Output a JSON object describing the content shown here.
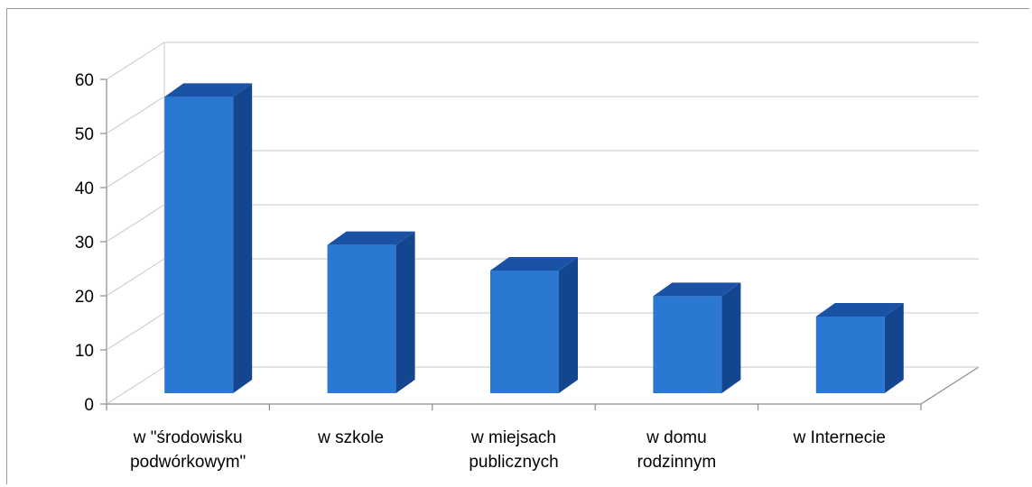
{
  "chart_data": {
    "type": "bar",
    "subtype": "3d-column",
    "categories": [
      [
        "w \"środowisku",
        "podwórkowym\""
      ],
      [
        "w szkole"
      ],
      [
        "w miejsach",
        "publicznych"
      ],
      [
        "w domu",
        "rodzinnym"
      ],
      [
        "w Internecie"
      ]
    ],
    "values": [
      58,
      29,
      24,
      19,
      15
    ],
    "yticks": [
      0,
      10,
      20,
      30,
      40,
      50,
      60
    ],
    "ylim": [
      0,
      60
    ],
    "grid": true,
    "legend": "none",
    "colors": {
      "front": "#2a78d2",
      "side": "#14468f",
      "top": "#1a53a6",
      "grid": "#c8c8c8"
    }
  }
}
